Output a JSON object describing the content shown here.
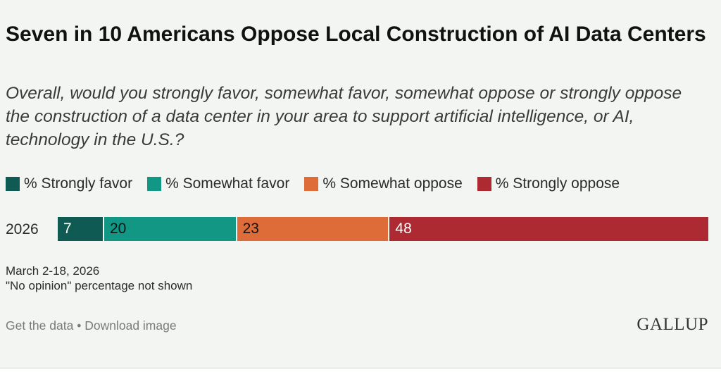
{
  "title": "Seven in 10 Americans Oppose Local Construction of AI Data Centers",
  "subtitle": "Overall, would you strongly favor, somewhat favor, somewhat oppose or strongly oppose the construction of a data center in your area to support artificial intelligence, or AI, technology in the U.S.?",
  "chart_data": {
    "type": "bar",
    "orientation": "horizontal-stacked",
    "categories": [
      "2026"
    ],
    "series": [
      {
        "name": "% Strongly favor",
        "values": [
          7
        ],
        "color": "#0f5a52"
      },
      {
        "name": "% Somewhat favor",
        "values": [
          20
        ],
        "color": "#119784"
      },
      {
        "name": "% Somewhat oppose",
        "values": [
          23
        ],
        "color": "#de6c38"
      },
      {
        "name": "% Strongly oppose",
        "values": [
          48
        ],
        "color": "#ae2a32"
      }
    ],
    "legend_position": "top-left"
  },
  "notes": {
    "dates": "March 2-18, 2026",
    "footnote": "\"No opinion\" percentage not shown"
  },
  "footer": {
    "get_data": "Get the data",
    "separator": "•",
    "download": "Download image",
    "logo": "GALLUP"
  }
}
